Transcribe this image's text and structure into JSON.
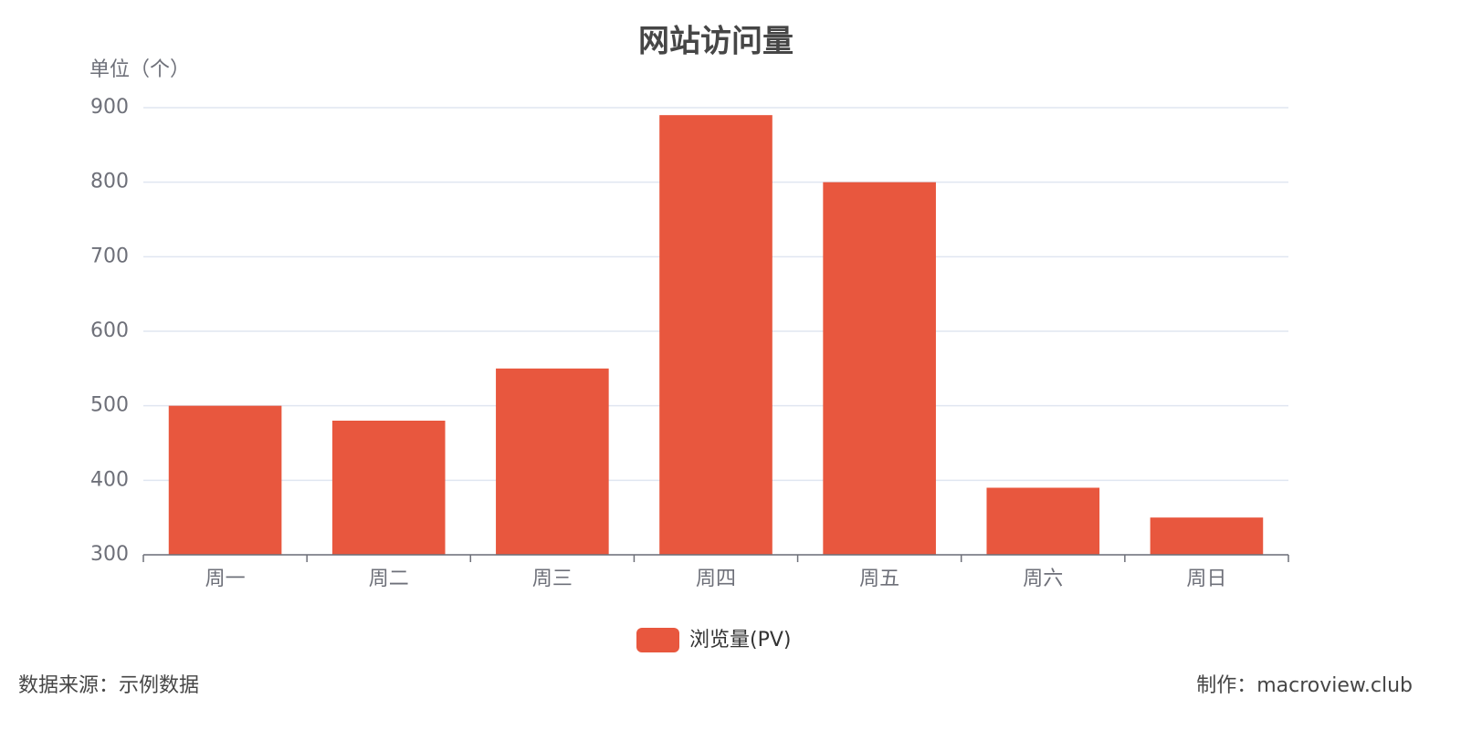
{
  "chart_data": {
    "type": "bar",
    "title": "网站访问量",
    "y_axis_label": "单位（个）",
    "categories": [
      "周一",
      "周二",
      "周三",
      "周四",
      "周五",
      "周六",
      "周日"
    ],
    "series": [
      {
        "name": "浏览量(PV)",
        "color": "#e8573e",
        "values": [
          500,
          480,
          550,
          890,
          800,
          390,
          350
        ]
      }
    ],
    "ylim": [
      300,
      900
    ],
    "yticks": [
      300,
      400,
      500,
      600,
      700,
      800,
      900
    ],
    "grid": true,
    "legend": "bottom",
    "source": "数据来源：示例数据",
    "credit": "制作：macroview.club"
  }
}
